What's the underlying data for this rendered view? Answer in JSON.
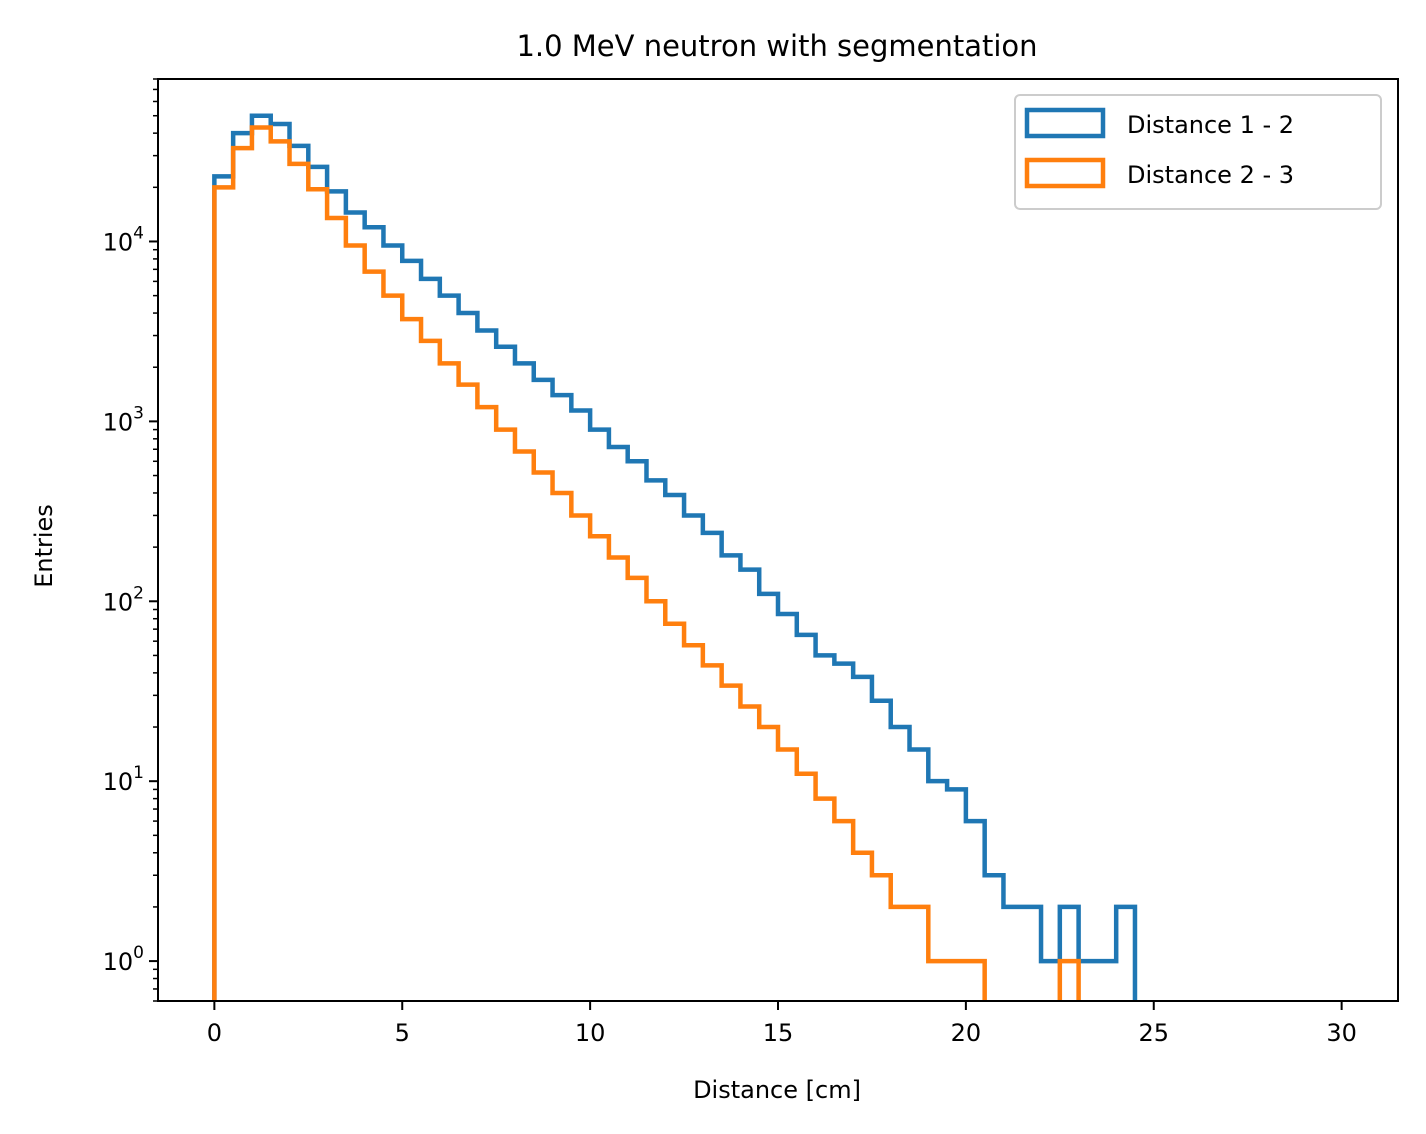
{
  "chart_data": {
    "type": "histogram-step",
    "title": "1.0 MeV neutron with segmentation",
    "xlabel": "Distance [cm]",
    "ylabel": "Entries",
    "xlim": [
      -1.5,
      31.5
    ],
    "ylim": [
      0.6,
      80000
    ],
    "yscale": "log",
    "xticks": [
      0,
      5,
      10,
      15,
      20,
      25,
      30
    ],
    "xtick_labels": [
      "0",
      "5",
      "10",
      "15",
      "20",
      "25",
      "30"
    ],
    "yticks": [
      1,
      10,
      100,
      1000,
      10000
    ],
    "ytick_labels": [
      {
        "base": "10",
        "exp": "0"
      },
      {
        "base": "10",
        "exp": "1"
      },
      {
        "base": "10",
        "exp": "2"
      },
      {
        "base": "10",
        "exp": "3"
      },
      {
        "base": "10",
        "exp": "4"
      }
    ],
    "grid": false,
    "legend_position": "top-right",
    "series": [
      {
        "name": "Distance 1 - 2",
        "color": "#1f77b4",
        "points": [
          [
            0.0,
            23000
          ],
          [
            0.5,
            40000
          ],
          [
            1.0,
            50000
          ],
          [
            1.5,
            45000
          ],
          [
            2.0,
            34000
          ],
          [
            2.5,
            26000
          ],
          [
            3.0,
            19000
          ],
          [
            3.5,
            14500
          ],
          [
            4.0,
            12000
          ],
          [
            4.5,
            9500
          ],
          [
            5.0,
            7800
          ],
          [
            5.5,
            6200
          ],
          [
            6.0,
            5000
          ],
          [
            6.5,
            4000
          ],
          [
            7.0,
            3200
          ],
          [
            7.5,
            2600
          ],
          [
            8.0,
            2100
          ],
          [
            8.5,
            1700
          ],
          [
            9.0,
            1400
          ],
          [
            9.5,
            1150
          ],
          [
            10.0,
            900
          ],
          [
            10.5,
            720
          ],
          [
            11.0,
            600
          ],
          [
            11.5,
            470
          ],
          [
            12.0,
            390
          ],
          [
            12.5,
            300
          ],
          [
            13.0,
            240
          ],
          [
            13.5,
            180
          ],
          [
            14.0,
            150
          ],
          [
            14.5,
            110
          ],
          [
            15.0,
            85
          ],
          [
            15.5,
            65
          ],
          [
            16.0,
            50
          ],
          [
            16.5,
            45
          ],
          [
            17.0,
            38
          ],
          [
            17.5,
            28
          ],
          [
            18.0,
            20
          ],
          [
            18.5,
            15
          ],
          [
            19.0,
            10
          ],
          [
            19.5,
            9
          ],
          [
            20.0,
            6
          ],
          [
            20.5,
            3
          ],
          [
            21.0,
            2
          ],
          [
            21.5,
            2
          ],
          [
            22.0,
            1
          ],
          [
            22.5,
            2
          ],
          [
            23.0,
            1
          ],
          [
            23.5,
            1
          ],
          [
            24.0,
            2
          ],
          [
            24.5,
            0
          ],
          [
            25.0,
            0
          ],
          [
            25.5,
            0
          ],
          [
            26.0,
            0
          ],
          [
            26.5,
            0
          ],
          [
            27.0,
            0
          ],
          [
            27.5,
            0
          ],
          [
            28.0,
            0
          ],
          [
            28.5,
            0
          ],
          [
            29.0,
            0
          ],
          [
            29.5,
            0
          ],
          [
            30.0,
            0
          ]
        ]
      },
      {
        "name": "Distance 2 - 3",
        "color": "#ff7f0e",
        "points": [
          [
            0.0,
            20000
          ],
          [
            0.5,
            33000
          ],
          [
            1.0,
            43000
          ],
          [
            1.5,
            36000
          ],
          [
            2.0,
            27000
          ],
          [
            2.5,
            19500
          ],
          [
            3.0,
            13500
          ],
          [
            3.5,
            9500
          ],
          [
            4.0,
            6800
          ],
          [
            4.5,
            5000
          ],
          [
            5.0,
            3700
          ],
          [
            5.5,
            2800
          ],
          [
            6.0,
            2100
          ],
          [
            6.5,
            1600
          ],
          [
            7.0,
            1200
          ],
          [
            7.5,
            900
          ],
          [
            8.0,
            680
          ],
          [
            8.5,
            520
          ],
          [
            9.0,
            400
          ],
          [
            9.5,
            300
          ],
          [
            10.0,
            230
          ],
          [
            10.5,
            175
          ],
          [
            11.0,
            135
          ],
          [
            11.5,
            100
          ],
          [
            12.0,
            75
          ],
          [
            12.5,
            57
          ],
          [
            13.0,
            44
          ],
          [
            13.5,
            34
          ],
          [
            14.0,
            26
          ],
          [
            14.5,
            20
          ],
          [
            15.0,
            15
          ],
          [
            15.5,
            11
          ],
          [
            16.0,
            8
          ],
          [
            16.5,
            6
          ],
          [
            17.0,
            4
          ],
          [
            17.5,
            3
          ],
          [
            18.0,
            2
          ],
          [
            18.5,
            2
          ],
          [
            19.0,
            1
          ],
          [
            19.5,
            1
          ],
          [
            20.0,
            1
          ],
          [
            20.5,
            0
          ],
          [
            21.0,
            0
          ],
          [
            21.5,
            0
          ],
          [
            22.0,
            0
          ],
          [
            22.5,
            1
          ],
          [
            23.0,
            0
          ],
          [
            23.5,
            0
          ],
          [
            24.0,
            0
          ],
          [
            24.5,
            0
          ],
          [
            25.0,
            0
          ],
          [
            25.5,
            0
          ],
          [
            26.0,
            0
          ],
          [
            26.5,
            0
          ],
          [
            27.0,
            0
          ],
          [
            27.5,
            0
          ],
          [
            28.0,
            0
          ],
          [
            28.5,
            0
          ],
          [
            29.0,
            0
          ],
          [
            29.5,
            0
          ],
          [
            30.0,
            0
          ]
        ]
      }
    ]
  }
}
